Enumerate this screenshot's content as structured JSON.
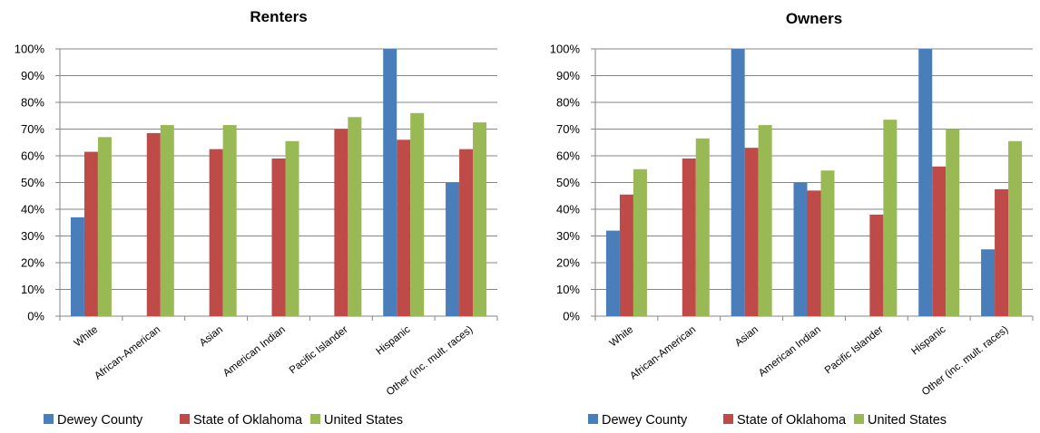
{
  "colors": {
    "dewey": "#4a7ebb",
    "oklahoma": "#be4b48",
    "us": "#98b954",
    "grid": "#868686",
    "axis": "#868686",
    "text": "#000000"
  },
  "chart_data": [
    {
      "type": "bar",
      "title": "Renters",
      "categories": [
        "White",
        "African-American",
        "Asian",
        "American Indian",
        "Pacific Islander",
        "Hispanic",
        "Other (inc. mult. races)"
      ],
      "series": [
        {
          "name": "Dewey County",
          "color": "#4a7ebb",
          "values": [
            37,
            0,
            0,
            0,
            0,
            100,
            50
          ]
        },
        {
          "name": "State of Oklahoma",
          "color": "#be4b48",
          "values": [
            61.5,
            68.5,
            62.5,
            59,
            70,
            66,
            62.5
          ]
        },
        {
          "name": "United States",
          "color": "#98b954",
          "values": [
            67,
            71.5,
            71.5,
            65.5,
            74.5,
            76,
            72.5
          ]
        }
      ],
      "ylim": [
        0,
        100
      ],
      "yticks": [
        "0%",
        "10%",
        "20%",
        "30%",
        "40%",
        "50%",
        "60%",
        "70%",
        "80%",
        "90%",
        "100%"
      ],
      "grid": true,
      "legend": "bottom"
    },
    {
      "type": "bar",
      "title": "Owners",
      "categories": [
        "White",
        "African-American",
        "Asian",
        "American Indian",
        "Pacific Islander",
        "Hispanic",
        "Other (inc. mult. races)"
      ],
      "series": [
        {
          "name": "Dewey County",
          "color": "#4a7ebb",
          "values": [
            32,
            0,
            100,
            50,
            0,
            100,
            25
          ]
        },
        {
          "name": "State of Oklahoma",
          "color": "#be4b48",
          "values": [
            45.5,
            59,
            63,
            47,
            38,
            56,
            47.5
          ]
        },
        {
          "name": "United States",
          "color": "#98b954",
          "values": [
            55,
            66.5,
            71.5,
            54.5,
            73.5,
            70,
            65.5
          ]
        }
      ],
      "ylim": [
        0,
        100
      ],
      "yticks": [
        "0%",
        "10%",
        "20%",
        "30%",
        "40%",
        "50%",
        "60%",
        "70%",
        "80%",
        "90%",
        "100%"
      ],
      "grid": true,
      "legend": "bottom"
    }
  ]
}
